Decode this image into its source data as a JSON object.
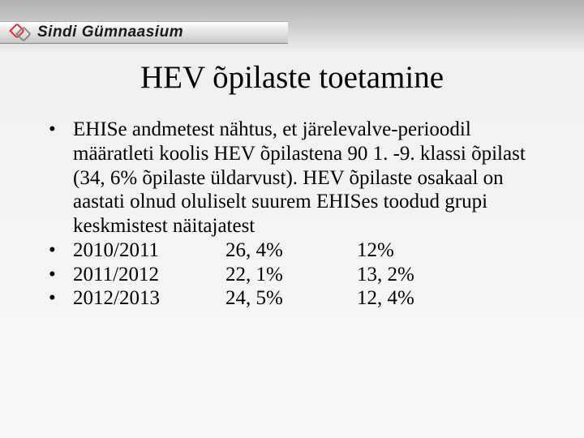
{
  "header": {
    "school_name": "Sindi Gümnaasium"
  },
  "title": "HEV õpilaste toetamine",
  "intro": "EHISe andmetest nähtus, et järelevalve-perioodil määratleti koolis HEV õpilastena 90 1. -9. klassi õpilast (34, 6% õpilaste üldarvust). HEV õpilaste osakaal on aastati olnud oluliselt suurem EHISes toodud grupi keskmistest näitajatest",
  "rows": [
    {
      "year": "2010/2011",
      "pct1": "26, 4%",
      "pct2": "12%"
    },
    {
      "year": "2011/2012",
      "pct1": "22, 1%",
      "pct2": "13, 2%"
    },
    {
      "year": "2012/2013",
      "pct1": "24, 5%",
      "pct2": "12, 4%"
    }
  ],
  "bullet_char": "•",
  "colors": {
    "text": "#000000",
    "logo_red": "#d83030",
    "logo_gray": "#888888"
  }
}
